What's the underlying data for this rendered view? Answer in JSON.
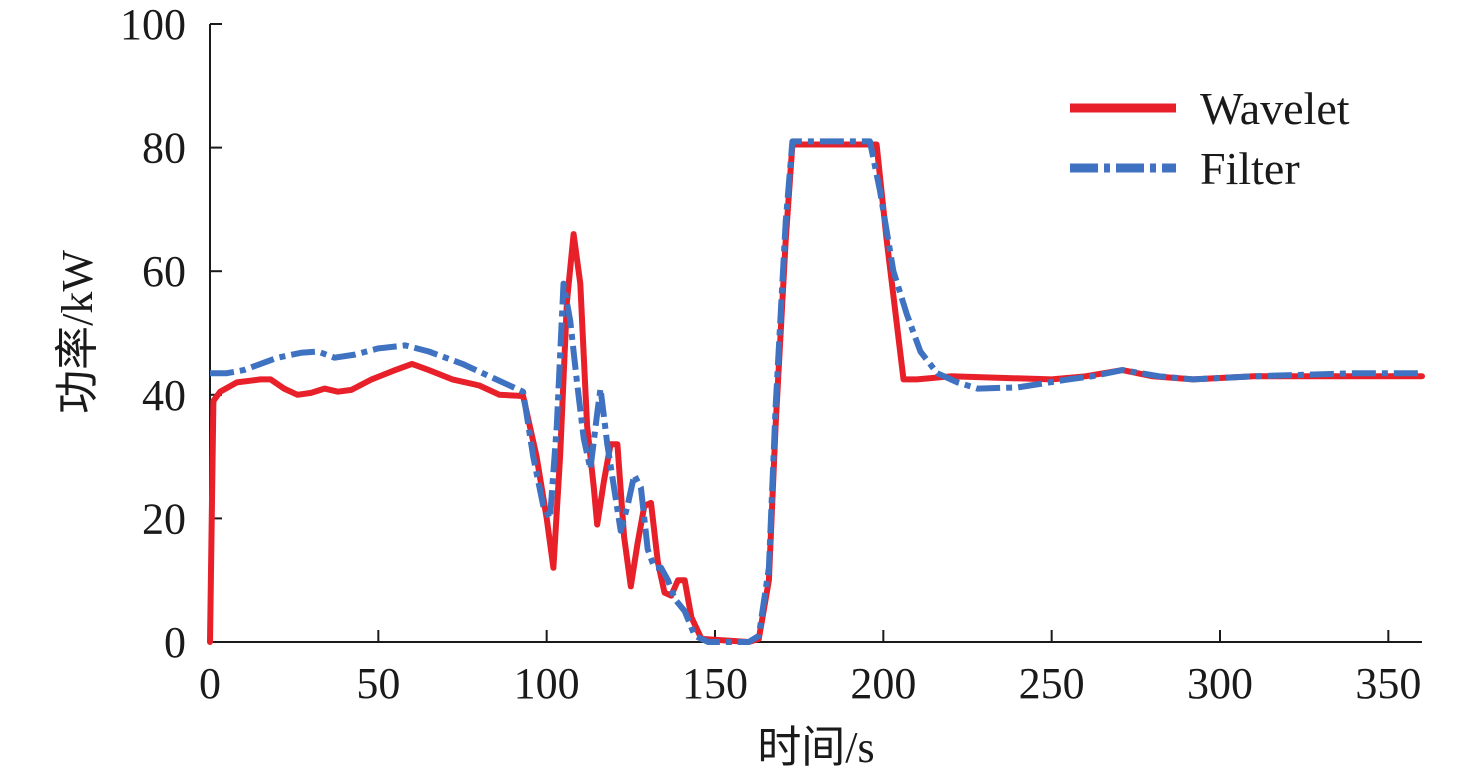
{
  "chart_data": {
    "type": "line",
    "title": "",
    "xlabel": "时间/s",
    "ylabel": "功率/kW",
    "xlim": [
      0,
      360
    ],
    "ylim": [
      0,
      100
    ],
    "x_ticks": [
      0,
      50,
      100,
      150,
      200,
      250,
      300,
      350
    ],
    "y_ticks": [
      0,
      20,
      40,
      60,
      80,
      100
    ],
    "grid": false,
    "legend_position": "top-right",
    "series": [
      {
        "name": "Wavelet",
        "color": "#e8202a",
        "style": "solid",
        "points": [
          [
            0,
            0
          ],
          [
            1,
            39
          ],
          [
            3,
            40.5
          ],
          [
            8,
            42
          ],
          [
            15,
            42.5
          ],
          [
            18,
            42.5
          ],
          [
            22,
            41
          ],
          [
            26,
            40
          ],
          [
            30,
            40.3
          ],
          [
            34,
            41
          ],
          [
            38,
            40.5
          ],
          [
            42,
            40.8
          ],
          [
            48,
            42.5
          ],
          [
            55,
            44
          ],
          [
            60,
            45
          ],
          [
            65,
            44
          ],
          [
            72,
            42.5
          ],
          [
            80,
            41.5
          ],
          [
            86,
            40
          ],
          [
            93,
            39.8
          ],
          [
            97,
            30
          ],
          [
            100,
            20
          ],
          [
            102,
            12
          ],
          [
            104,
            30
          ],
          [
            106,
            55
          ],
          [
            108,
            66
          ],
          [
            110,
            58
          ],
          [
            112,
            35
          ],
          [
            114,
            25
          ],
          [
            115,
            19
          ],
          [
            117,
            26
          ],
          [
            119,
            32
          ],
          [
            121,
            32
          ],
          [
            123,
            17
          ],
          [
            125,
            9
          ],
          [
            127,
            16
          ],
          [
            129,
            22
          ],
          [
            131,
            22.5
          ],
          [
            133,
            13
          ],
          [
            135,
            8
          ],
          [
            137,
            7.5
          ],
          [
            139,
            10
          ],
          [
            141,
            10
          ],
          [
            143,
            4
          ],
          [
            146,
            0.5
          ],
          [
            160,
            0
          ],
          [
            163,
            0.5
          ],
          [
            166,
            10
          ],
          [
            168,
            35
          ],
          [
            171,
            65
          ],
          [
            173,
            80.5
          ],
          [
            198,
            80.5
          ],
          [
            201,
            65
          ],
          [
            206,
            42.5
          ],
          [
            210,
            42.5
          ],
          [
            220,
            43
          ],
          [
            250,
            42.5
          ],
          [
            260,
            43
          ],
          [
            271,
            44
          ],
          [
            280,
            43
          ],
          [
            292,
            42.5
          ],
          [
            310,
            43
          ],
          [
            340,
            43
          ],
          [
            360,
            43
          ]
        ]
      },
      {
        "name": "Filter",
        "color": "#3f73c2",
        "style": "dashdot",
        "points": [
          [
            0,
            43.5
          ],
          [
            5,
            43.5
          ],
          [
            10,
            44
          ],
          [
            15,
            45
          ],
          [
            20,
            46
          ],
          [
            27,
            46.8
          ],
          [
            32,
            47
          ],
          [
            37,
            46
          ],
          [
            43,
            46.5
          ],
          [
            50,
            47.5
          ],
          [
            58,
            48
          ],
          [
            65,
            47
          ],
          [
            75,
            45
          ],
          [
            85,
            42.5
          ],
          [
            93,
            40.5
          ],
          [
            96,
            30
          ],
          [
            99,
            22
          ],
          [
            101,
            20
          ],
          [
            103,
            35
          ],
          [
            105,
            58
          ],
          [
            107,
            52
          ],
          [
            109,
            42
          ],
          [
            111,
            33
          ],
          [
            113,
            28
          ],
          [
            115,
            37
          ],
          [
            116,
            41
          ],
          [
            118,
            32
          ],
          [
            120,
            25
          ],
          [
            122,
            18
          ],
          [
            124,
            22
          ],
          [
            126,
            27
          ],
          [
            128,
            25
          ],
          [
            130,
            15
          ],
          [
            132,
            12
          ],
          [
            134,
            12
          ],
          [
            136,
            10
          ],
          [
            138,
            7
          ],
          [
            141,
            5
          ],
          [
            144,
            1
          ],
          [
            148,
            0
          ],
          [
            160,
            0
          ],
          [
            163,
            1
          ],
          [
            166,
            12
          ],
          [
            168,
            38
          ],
          [
            171,
            68
          ],
          [
            173,
            81
          ],
          [
            196,
            81
          ],
          [
            199,
            73
          ],
          [
            203,
            60
          ],
          [
            207,
            53
          ],
          [
            211,
            47
          ],
          [
            216,
            43.5
          ],
          [
            222,
            42
          ],
          [
            228,
            41
          ],
          [
            240,
            41.2
          ],
          [
            255,
            42.5
          ],
          [
            262,
            43
          ],
          [
            271,
            44
          ],
          [
            282,
            43
          ],
          [
            292,
            42.5
          ],
          [
            310,
            43
          ],
          [
            340,
            43.5
          ],
          [
            360,
            43.5
          ]
        ]
      }
    ]
  }
}
